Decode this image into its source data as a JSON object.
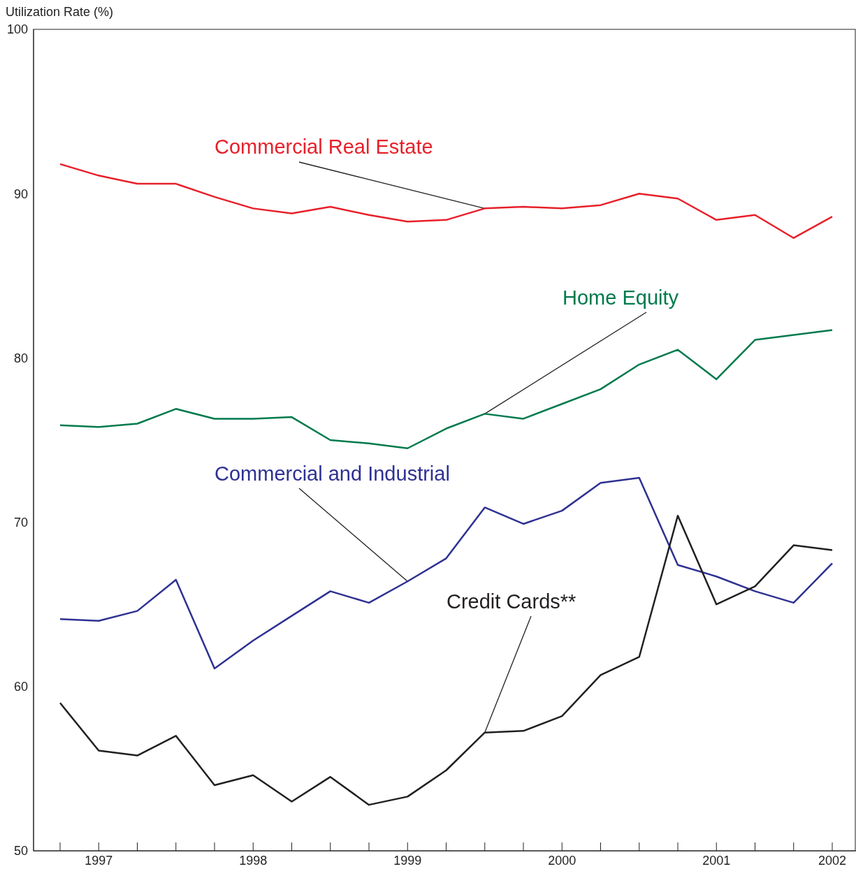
{
  "chart_data": {
    "type": "line",
    "ylabel": "Utilization Rate (%)",
    "categories": [
      null,
      "1997",
      null,
      null,
      null,
      "1998",
      null,
      null,
      null,
      "1999",
      null,
      null,
      null,
      "2000",
      null,
      null,
      null,
      "2001",
      null,
      null,
      "2002"
    ],
    "ylim": [
      50,
      100
    ],
    "yticks": [
      50,
      60,
      70,
      80,
      90,
      100
    ],
    "marker": "none",
    "line_style": "solid",
    "series": [
      {
        "name": "Commercial Real Estate",
        "color": "#e8202a",
        "values": [
          91.8,
          91.1,
          90.6,
          90.6,
          89.8,
          89.1,
          88.8,
          89.2,
          88.7,
          88.3,
          88.4,
          89.1,
          89.2,
          89.1,
          89.3,
          90.0,
          89.7,
          88.4,
          88.7,
          87.3,
          88.6
        ]
      },
      {
        "name": "Home Equity",
        "color": "#007a4d",
        "values": [
          75.9,
          75.8,
          76.0,
          76.9,
          76.3,
          76.3,
          76.4,
          75.0,
          74.8,
          74.5,
          75.7,
          76.6,
          76.3,
          77.2,
          78.1,
          79.6,
          80.5,
          78.7,
          81.1,
          81.4,
          81.7
        ]
      },
      {
        "name": "Commercial and Industrial",
        "color": "#2e3192",
        "values": [
          64.1,
          64.0,
          64.6,
          66.5,
          61.1,
          62.8,
          64.3,
          65.8,
          65.1,
          66.4,
          67.8,
          70.9,
          69.9,
          70.7,
          72.4,
          72.7,
          67.4,
          66.7,
          65.8,
          65.1,
          67.5
        ]
      },
      {
        "name": "Credit Cards**",
        "color": "#231f20",
        "values": [
          59.0,
          56.1,
          55.8,
          57.0,
          54.0,
          54.6,
          53.0,
          54.5,
          52.8,
          53.3,
          54.9,
          57.2,
          57.3,
          58.2,
          60.7,
          61.8,
          70.4,
          65.0,
          66.1,
          68.6,
          68.3
        ]
      }
    ]
  }
}
